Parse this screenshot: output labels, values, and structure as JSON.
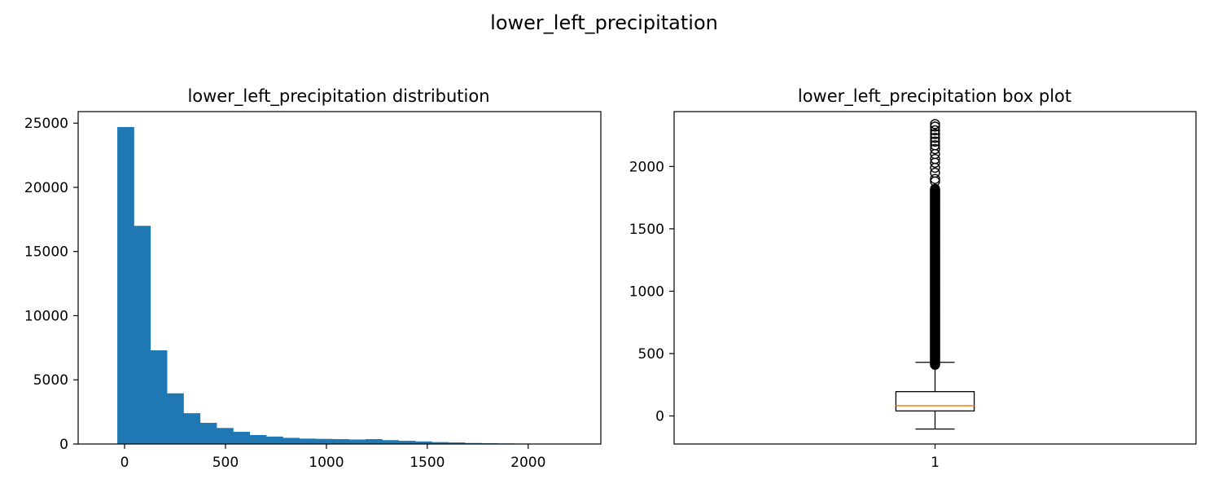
{
  "figure": {
    "suptitle": "lower_left_precipitation"
  },
  "chart_data": [
    {
      "type": "bar",
      "title": "lower_left_precipitation distribution",
      "xlabel": "",
      "ylabel": "",
      "xlim": [
        -230,
        2360
      ],
      "ylim": [
        0,
        25900
      ],
      "xticks": [
        0,
        500,
        1000,
        1500,
        2000
      ],
      "yticks": [
        0,
        5000,
        10000,
        15000,
        20000,
        25000
      ],
      "bar_color": "#1f77b4",
      "bin_width": 82,
      "bin_start": -36,
      "values": [
        24700,
        17000,
        7300,
        3950,
        2400,
        1650,
        1250,
        950,
        700,
        580,
        480,
        420,
        400,
        380,
        350,
        380,
        300,
        250,
        200,
        150,
        120,
        80,
        60,
        45,
        35,
        28,
        22,
        18
      ]
    },
    {
      "type": "box",
      "title": "lower_left_precipitation box plot",
      "xlabel": "",
      "ylabel": "",
      "xlim": [
        0.5,
        1.5
      ],
      "ylim": [
        -225,
        2440
      ],
      "xticks": [
        1
      ],
      "yticks": [
        0,
        500,
        1000,
        1500,
        2000
      ],
      "median_color": "#ff7f0e",
      "box": {
        "whisker_low": -105,
        "q1": 40,
        "median": 82,
        "q3": 195,
        "whisker_high": 430
      },
      "outliers": {
        "dense_from": 410,
        "dense_to": 1820,
        "sparse": [
          1880,
          1900,
          1950,
          1990,
          2030,
          2060,
          2100,
          2140,
          2170,
          2200,
          2230,
          2260,
          2290,
          2320,
          2340
        ]
      }
    }
  ]
}
